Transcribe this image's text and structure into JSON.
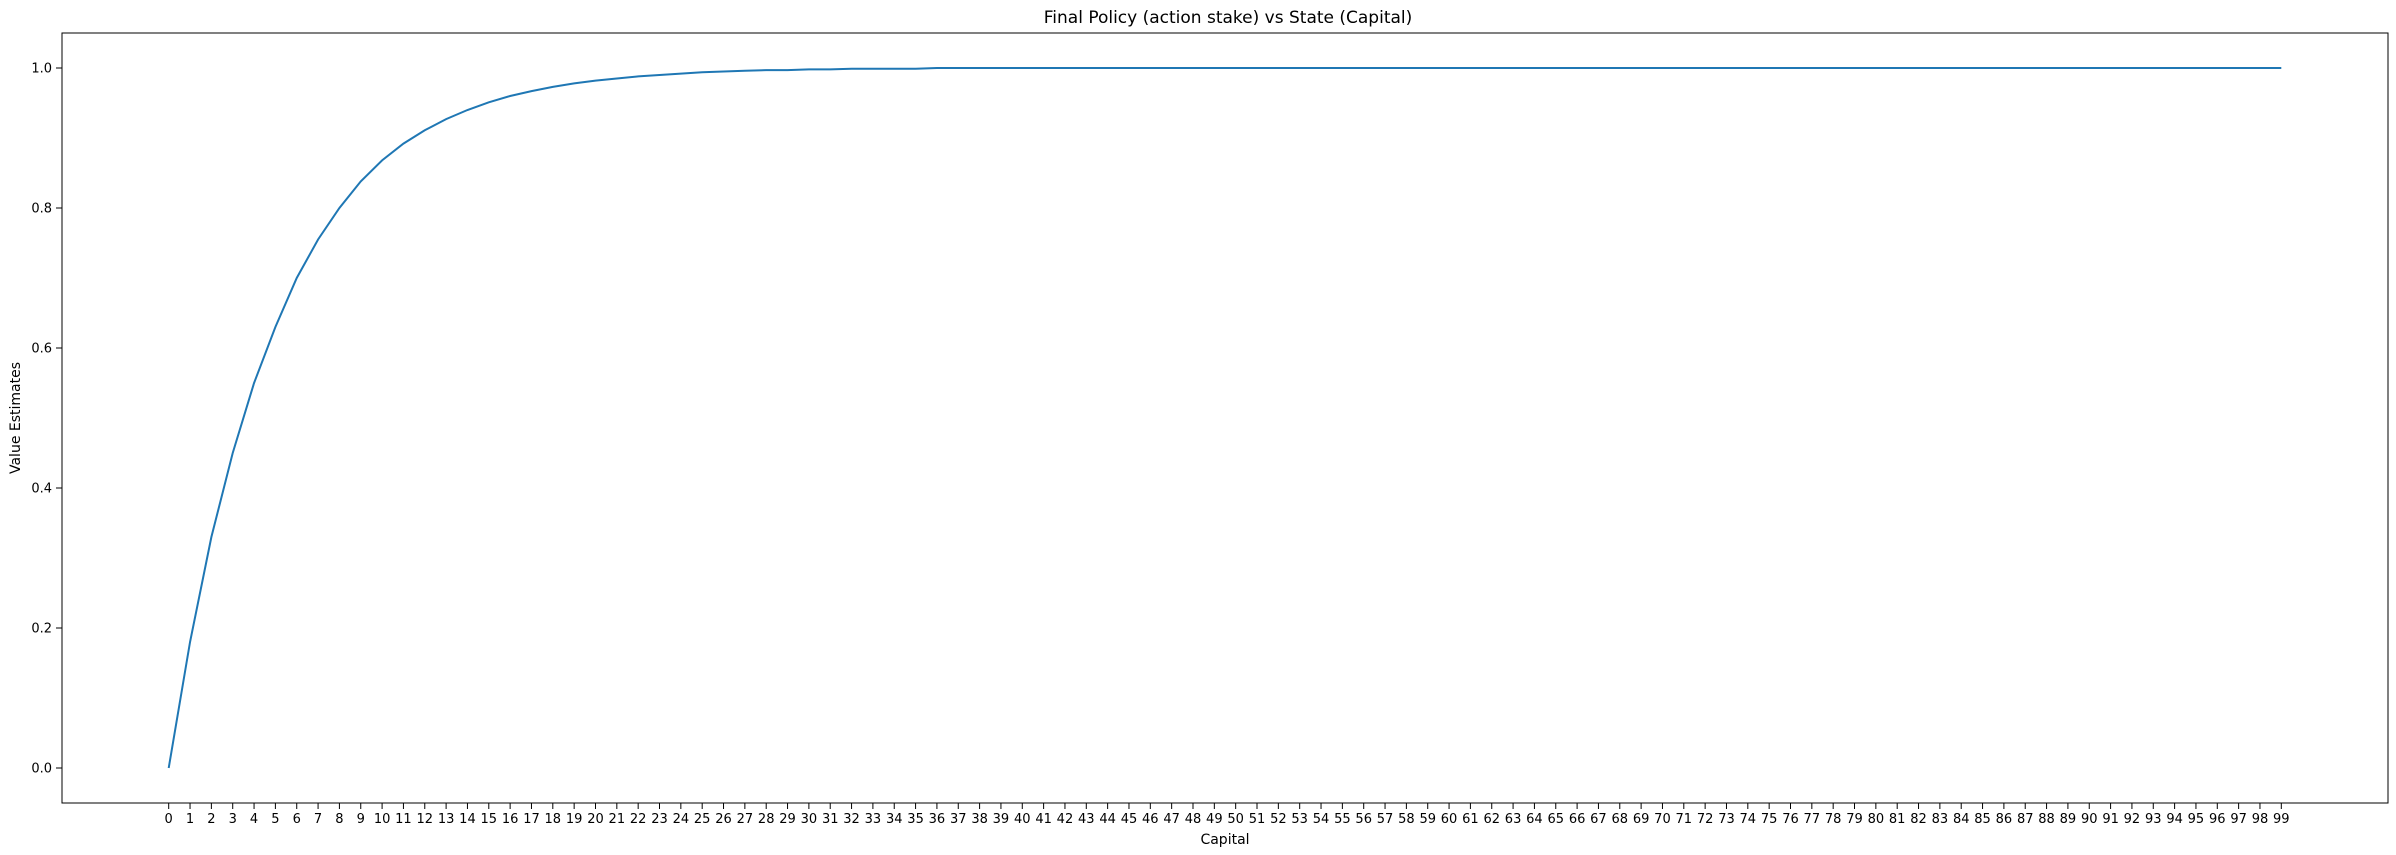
{
  "chart_data": {
    "type": "line",
    "title": "Final Policy (action stake) vs State (Capital)",
    "xlabel": "Capital",
    "ylabel": "Value Estimates",
    "xlim": [
      -5,
      104
    ],
    "ylim": [
      -0.05,
      1.05
    ],
    "xticks": [
      0,
      1,
      2,
      3,
      4,
      5,
      6,
      7,
      8,
      9,
      10,
      11,
      12,
      13,
      14,
      15,
      16,
      17,
      18,
      19,
      20,
      21,
      22,
      23,
      24,
      25,
      26,
      27,
      28,
      29,
      30,
      31,
      32,
      33,
      34,
      35,
      36,
      37,
      38,
      39,
      40,
      41,
      42,
      43,
      44,
      45,
      46,
      47,
      48,
      49,
      50,
      51,
      52,
      53,
      54,
      55,
      56,
      57,
      58,
      59,
      60,
      61,
      62,
      63,
      64,
      65,
      66,
      67,
      68,
      69,
      70,
      71,
      72,
      73,
      74,
      75,
      76,
      77,
      78,
      79,
      80,
      81,
      82,
      83,
      84,
      85,
      86,
      87,
      88,
      89,
      90,
      91,
      92,
      93,
      94,
      95,
      96,
      97,
      98,
      99
    ],
    "yticks": [
      "0.0",
      "0.2",
      "0.4",
      "0.6",
      "0.8",
      "1.0"
    ],
    "grid": false,
    "line_color": "#1f77b4",
    "series": [
      {
        "x": [
          0,
          1,
          2,
          3,
          4,
          5,
          6,
          7,
          8,
          9,
          10,
          11,
          12,
          13,
          14,
          15,
          16,
          17,
          18,
          19,
          20,
          21,
          22,
          23,
          24,
          25,
          26,
          27,
          28,
          29,
          30,
          31,
          32,
          33,
          34,
          35,
          36,
          37,
          38,
          39,
          40,
          41,
          42,
          43,
          44,
          45,
          46,
          47,
          48,
          49,
          50,
          51,
          52,
          53,
          54,
          55,
          56,
          57,
          58,
          59,
          60,
          61,
          62,
          63,
          64,
          65,
          66,
          67,
          68,
          69,
          70,
          71,
          72,
          73,
          74,
          75,
          76,
          77,
          78,
          79,
          80,
          81,
          82,
          83,
          84,
          85,
          86,
          87,
          88,
          89,
          90,
          91,
          92,
          93,
          94,
          95,
          96,
          97,
          98,
          99
        ],
        "values": [
          0.0,
          0.18,
          0.33,
          0.45,
          0.55,
          0.63,
          0.7,
          0.755,
          0.8,
          0.838,
          0.868,
          0.892,
          0.911,
          0.927,
          0.94,
          0.951,
          0.96,
          0.967,
          0.973,
          0.978,
          0.982,
          0.985,
          0.988,
          0.99,
          0.992,
          0.994,
          0.995,
          0.996,
          0.997,
          0.997,
          0.998,
          0.998,
          0.999,
          0.999,
          0.999,
          0.999,
          1.0,
          1.0,
          1.0,
          1.0,
          1.0,
          1.0,
          1.0,
          1.0,
          1.0,
          1.0,
          1.0,
          1.0,
          1.0,
          1.0,
          1.0,
          1.0,
          1.0,
          1.0,
          1.0,
          1.0,
          1.0,
          1.0,
          1.0,
          1.0,
          1.0,
          1.0,
          1.0,
          1.0,
          1.0,
          1.0,
          1.0,
          1.0,
          1.0,
          1.0,
          1.0,
          1.0,
          1.0,
          1.0,
          1.0,
          1.0,
          1.0,
          1.0,
          1.0,
          1.0,
          1.0,
          1.0,
          1.0,
          1.0,
          1.0,
          1.0,
          1.0,
          1.0,
          1.0,
          1.0,
          1.0,
          1.0,
          1.0,
          1.0,
          1.0,
          1.0,
          1.0,
          1.0,
          1.0,
          1.0
        ]
      }
    ]
  }
}
